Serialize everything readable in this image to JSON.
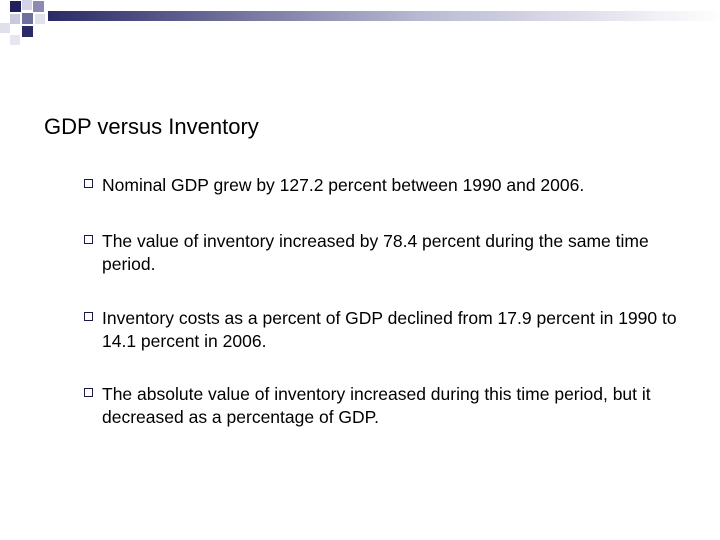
{
  "slide": {
    "title": "GDP versus Inventory",
    "bullets": [
      {
        "text": "Nominal GDP grew by 127.2 percent between 1990 and 2006."
      },
      {
        "text": "The value of inventory increased by 78.4 percent during the same time period."
      },
      {
        "text": "Inventory costs as a percent of GDP declined from 17.9 percent in 1990 to 14.1 percent in 2006."
      },
      {
        "text": "The absolute value of inventory increased during this time period, but it decreased as a percentage of GDP."
      }
    ],
    "colors": {
      "deco_dark": "#1f1f5c",
      "deco_mid": "#8a8ab3",
      "deco_light": "#c9c9de",
      "gradient_start": "#2a2a66",
      "gradient_end": "#ffffff",
      "marker_border": "#1a1a4a"
    },
    "bullet_marker_icon": "square-outline-icon"
  }
}
